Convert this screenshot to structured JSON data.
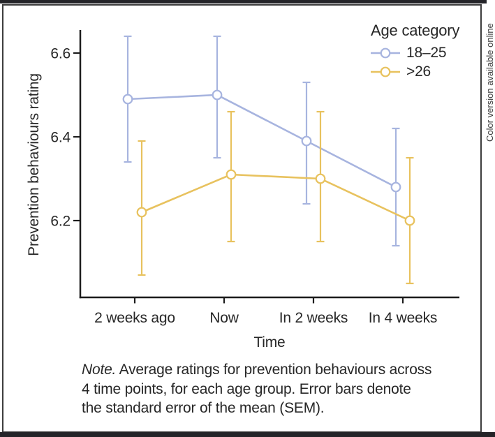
{
  "figure": {
    "sidebar_note": "Color version available online",
    "accent_bar_color": "#242428"
  },
  "chart_data": {
    "type": "line",
    "x_categories": [
      "2 weeks ago",
      "Now",
      "In 2 weeks",
      "In 4 weeks"
    ],
    "xlabel": "Time",
    "ylabel": "Prevention behaviours rating",
    "ytick_labels": [
      "6.2",
      "6.4",
      "6.6"
    ],
    "ylim": [
      6.02,
      6.66
    ],
    "grid": false,
    "marker": "open-circle",
    "error_bars": "SEM",
    "legend": {
      "title": "Age category",
      "position": "top-right"
    },
    "series": [
      {
        "name": "18–25",
        "color": "#a7b4df",
        "means": [
          6.49,
          6.5,
          6.39,
          6.28
        ],
        "sem_high": [
          6.64,
          6.64,
          6.53,
          6.42
        ],
        "sem_low": [
          6.34,
          6.35,
          6.24,
          6.14
        ]
      },
      {
        "name": ">26",
        "color": "#e8c25e",
        "means": [
          6.22,
          6.31,
          6.3,
          6.2
        ],
        "sem_high": [
          6.39,
          6.46,
          6.46,
          6.35
        ],
        "sem_low": [
          6.07,
          6.15,
          6.15,
          6.05
        ]
      }
    ]
  },
  "note": {
    "prefix": "Note.",
    "line1_rest": " Average ratings for prevention behaviours across",
    "line2": "4 time points, for each age group. Error bars denote",
    "line3": "the standard error of the mean (SEM)."
  }
}
